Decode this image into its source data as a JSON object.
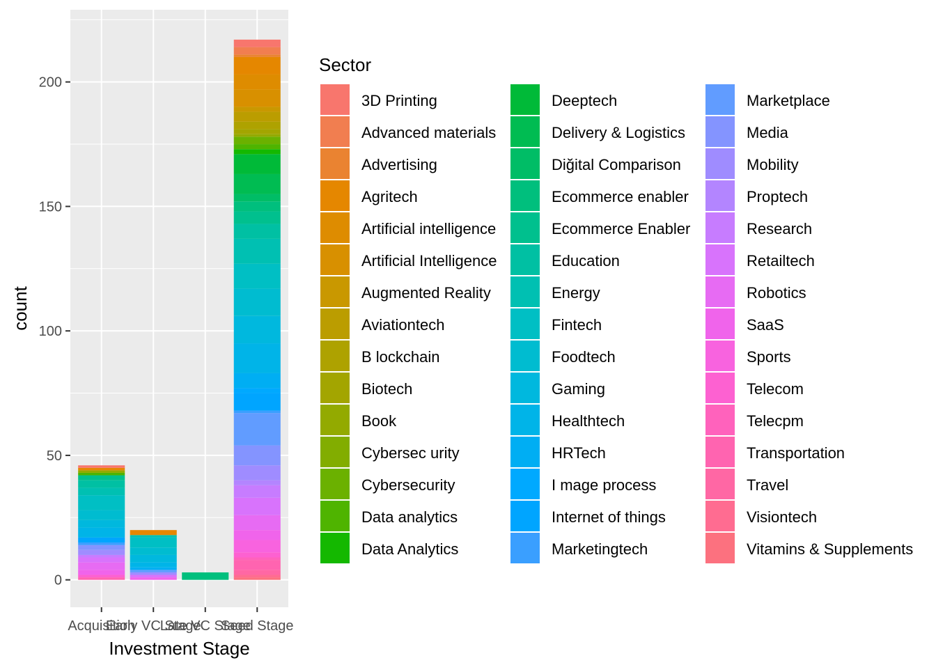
{
  "chart_data": {
    "type": "bar",
    "stacked": true,
    "xlabel": "Investment Stage",
    "ylabel": "count",
    "categories": [
      "Acquisition",
      "Early VC Stage",
      "Late VC Stage",
      "Seed Stage"
    ],
    "ylim": [
      -11,
      229
    ],
    "yticks": [
      0,
      50,
      100,
      150,
      200
    ],
    "grid": true,
    "legend": {
      "title": "Sector",
      "placement": "right",
      "columns": 3,
      "entries": [
        {
          "name": "3D Printing",
          "color": "#F8766D"
        },
        {
          "name": "Advanced materials",
          "color": "#F17E50"
        },
        {
          "name": "Advertising",
          "color": "#EA8331"
        },
        {
          "name": "Agritech",
          "color": "#E58700"
        },
        {
          "name": "Artificial intelligence",
          "color": "#DE8C00"
        },
        {
          "name": "Artificial Intelligence",
          "color": "#D89000"
        },
        {
          "name": "Augmented Reality",
          "color": "#C99800"
        },
        {
          "name": "Aviationtech",
          "color": "#BB9D00"
        },
        {
          "name": "B lockchain",
          "color": "#AEA200"
        },
        {
          "name": "Biotech",
          "color": "#A3A500"
        },
        {
          "name": "Book",
          "color": "#93AA00"
        },
        {
          "name": "Cybersec urity",
          "color": "#82AD00"
        },
        {
          "name": "Cybersecurity",
          "color": "#6BB100"
        },
        {
          "name": "Data analytics",
          "color": "#4FB400"
        },
        {
          "name": "Data Analytics",
          "color": "#14B800"
        },
        {
          "name": "Deeptech",
          "color": "#00BA38"
        },
        {
          "name": "Delivery & Logistics",
          "color": "#00BC52"
        },
        {
          "name": "Diğital Comparison",
          "color": "#00BD66"
        },
        {
          "name": "Ecommerce enabler",
          "color": "#00BF7D"
        },
        {
          "name": "Ecommerce Enabler",
          "color": "#00C08E"
        },
        {
          "name": "Education",
          "color": "#00C0A3"
        },
        {
          "name": "Energy",
          "color": "#00C0B2"
        },
        {
          "name": "Fintech",
          "color": "#00BFC4"
        },
        {
          "name": "Foodtech",
          "color": "#00BCD0"
        },
        {
          "name": "Gaming",
          "color": "#00B8DE"
        },
        {
          "name": "Healthtech",
          "color": "#00B4E8"
        },
        {
          "name": "HRTech",
          "color": "#00AEF3"
        },
        {
          "name": "I mage process",
          "color": "#00A9FF"
        },
        {
          "name": "Internet of things",
          "color": "#00A5FF"
        },
        {
          "name": "Marketingtech",
          "color": "#3A9FFF"
        },
        {
          "name": "Marketplace",
          "color": "#619CFF"
        },
        {
          "name": "Media",
          "color": "#8494FF"
        },
        {
          "name": "Mobility",
          "color": "#9F8CFF"
        },
        {
          "name": "Proptech",
          "color": "#B385FF"
        },
        {
          "name": "Research",
          "color": "#C77CFF"
        },
        {
          "name": "Retailtech",
          "color": "#D873FC"
        },
        {
          "name": "Robotics",
          "color": "#E76BF3"
        },
        {
          "name": "SaaS",
          "color": "#F064EB"
        },
        {
          "name": "Sports",
          "color": "#F863DF"
        },
        {
          "name": "Telecom",
          "color": "#FD61D1"
        },
        {
          "name": "Telecpm",
          "color": "#FF62BC"
        },
        {
          "name": "Transportation",
          "color": "#FF64B0"
        },
        {
          "name": "Travel",
          "color": "#FF67A4"
        },
        {
          "name": "Visiontech",
          "color": "#FF6C91"
        },
        {
          "name": "Vitamins & Supplements",
          "color": "#FC717F"
        }
      ]
    },
    "series_values": {
      "Acquisition": {
        "3D Printing": 1,
        "Agritech": 1,
        "Book": 1,
        "Data analytics": 1,
        "Ecommerce Enabler": 2,
        "Education": 3,
        "Energy": 3,
        "Fintech": 6,
        "Foodtech": 4,
        "Gaming": 3,
        "Healthtech": 4,
        "Internet of things": 2,
        "Marketingtech": 1,
        "Media": 2,
        "Mobility": 2,
        "Research": 1,
        "Retailtech": 2,
        "Robotics": 3,
        "SaaS": 2,
        "Telecom": 1,
        "Transportation": 1
      },
      "Early VC Stage": {
        "Agritech": 2,
        "Energy": 1,
        "Fintech": 4,
        "Foodtech": 3,
        "Gaming": 3,
        "Healthtech": 2,
        "HRTech": 1,
        "Marketplace": 1,
        "Mobility": 1,
        "Retailtech": 1,
        "SaaS": 1
      },
      "Late VC Stage": {
        "Ecommerce enabler": 3
      },
      "Seed Stage": {
        "3D Printing": 3,
        "Advanced materials": 3,
        "Advertising": 1,
        "Agritech": 7,
        "Artificial intelligence": 6,
        "Artificial Intelligence": 7,
        "Augmented Reality": 2,
        "Aviationtech": 4,
        "B lockchain": 3,
        "Biotech": 2,
        "Book": 1,
        "Cybersecurity": 3,
        "Data analytics": 2,
        "Data Analytics": 2,
        "Deeptech": 8,
        "Delivery & Logistics": 8,
        "Diğital Comparison": 3,
        "Ecommerce enabler": 4,
        "Ecommerce Enabler": 5,
        "Education": 6,
        "Energy": 10,
        "Fintech": 10,
        "Foodtech": 11,
        "Gaming": 11,
        "Healthtech": 12,
        "HRTech": 6,
        "I mage process": 2,
        "Internet of things": 7,
        "Marketingtech": 1,
        "Marketplace": 13,
        "Media": 8,
        "Mobility": 6,
        "Proptech": 2,
        "Research": 5,
        "Retailtech": 7,
        "Robotics": 6,
        "SaaS": 4,
        "Sports": 5,
        "Telecom": 2,
        "Telecpm": 1,
        "Transportation": 4,
        "Travel": 2,
        "Visiontech": 1,
        "Vitamins & Supplements": 1
      }
    }
  }
}
